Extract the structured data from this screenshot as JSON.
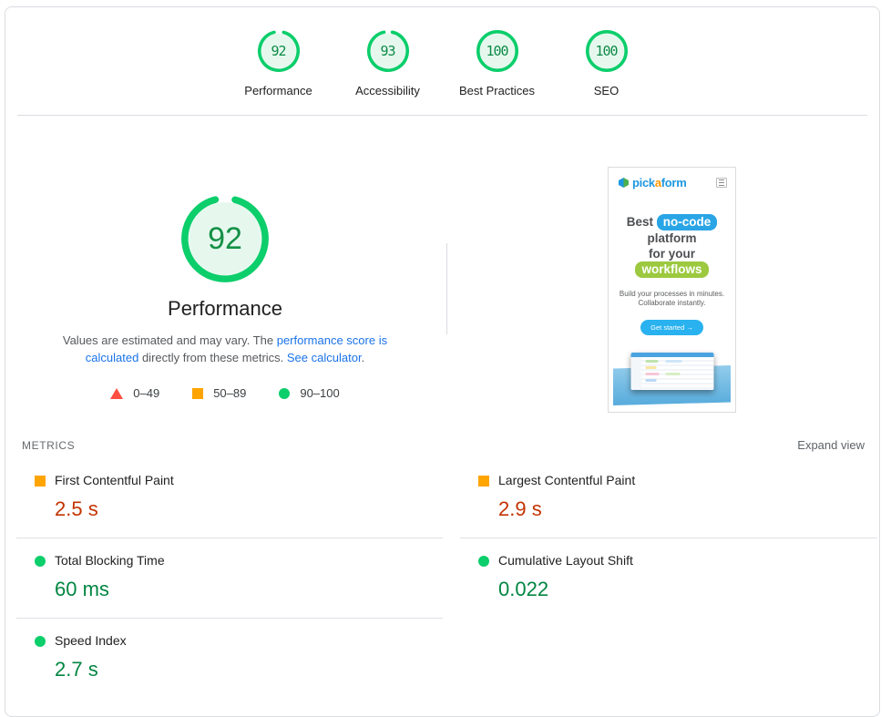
{
  "colors": {
    "pass_icon": "#0cce6b",
    "pass_text": "#018642",
    "average_icon": "#ffa400",
    "average_text": "#c33300",
    "fail_icon": "#ff4e42",
    "link": "#1a73e8"
  },
  "summary_gauges": [
    {
      "label": "Performance",
      "score": 92
    },
    {
      "label": "Accessibility",
      "score": 93
    },
    {
      "label": "Best Practices",
      "score": 100
    },
    {
      "label": "SEO",
      "score": 100
    }
  ],
  "main_gauge": {
    "score": 92,
    "label": "Performance"
  },
  "description": {
    "text_1": "Values are estimated and may vary. The ",
    "link_1": "performance score is calculated",
    "text_2": " directly from these metrics. ",
    "link_2": "See calculator",
    "text_3": "."
  },
  "legend": [
    {
      "shape": "triangle",
      "range": "0–49"
    },
    {
      "shape": "square",
      "range": "50–89"
    },
    {
      "shape": "circle",
      "range": "90–100"
    }
  ],
  "metrics_section": {
    "title": "METRICS",
    "expand_label": "Expand view"
  },
  "metrics": {
    "left": [
      {
        "name": "First Contentful Paint",
        "value": "2.5 s",
        "status": "average"
      },
      {
        "name": "Total Blocking Time",
        "value": "60 ms",
        "status": "pass"
      },
      {
        "name": "Speed Index",
        "value": "2.7 s",
        "status": "pass"
      }
    ],
    "right": [
      {
        "name": "Largest Contentful Paint",
        "value": "2.9 s",
        "status": "average"
      },
      {
        "name": "Cumulative Layout Shift",
        "value": "0.022",
        "status": "pass"
      }
    ]
  },
  "thumbnail": {
    "logo": {
      "part_1": "pick",
      "part_2": "a",
      "part_3": "form"
    },
    "heading": {
      "word_1": "Best",
      "pill_1": "no-code",
      "line_2": "platform",
      "line_3": "for your",
      "pill_2": "workflows"
    },
    "body_line_1": "Build your processes in minutes.",
    "body_line_2": "Collaborate instantly.",
    "cta_label": "Get started  →"
  }
}
